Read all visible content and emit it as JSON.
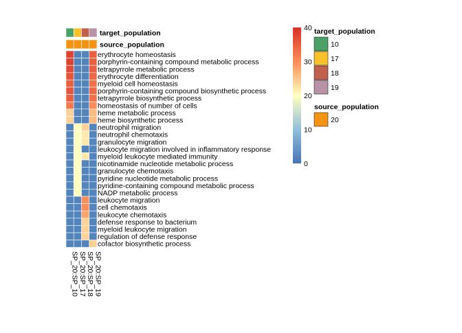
{
  "chart_data": {
    "type": "heatmap",
    "columns": [
      "SP_20:SP_10",
      "SP_20:SP_17",
      "SP_20:SP_18",
      "SP_20:SP_19"
    ],
    "rows": [
      "erythrocyte homeostasis",
      "porphyrin-containing compound metabolic process",
      "tetrapyrrole metabolic process",
      "erythrocyte differentiation",
      "myeloid cell homeostasis",
      "porphyrin-containing compound biosynthetic process",
      "tetrapyrrole biosynthetic process",
      "homeostasis of number of cells",
      "heme metabolic process",
      "heme biosynthetic process",
      "neutrophil migration",
      "neutrophil chemotaxis",
      "granulocyte migration",
      "leukocyte migration involved in inflammatory response",
      "myeloid leukocyte mediated immunity",
      "nicotinamide nucleotide metabolic process",
      "granulocyte chemotaxis",
      "pyridine nucleotide metabolic process",
      "pyridine-containing compound metabolic process",
      "NADP metabolic process",
      "leukocyte migration",
      "cell chemotaxis",
      "leukocyte chemotaxis",
      "defense response to bacterium",
      "myeloid leukocyte migration",
      "regulation of defense response",
      "cofactor biosynthetic process"
    ],
    "values": [
      [
        38,
        2,
        2,
        35
      ],
      [
        38,
        2,
        2,
        35
      ],
      [
        37,
        2,
        2,
        35
      ],
      [
        36,
        2,
        2,
        34
      ],
      [
        35,
        2,
        2,
        33
      ],
      [
        36,
        2,
        2,
        34
      ],
      [
        35,
        2,
        2,
        33
      ],
      [
        32,
        2,
        2,
        30
      ],
      [
        24,
        2,
        2,
        26
      ],
      [
        24,
        2,
        2,
        26
      ],
      [
        2,
        20,
        24,
        2
      ],
      [
        2,
        20,
        22,
        2
      ],
      [
        2,
        20,
        22,
        2
      ],
      [
        2,
        20,
        2,
        2
      ],
      [
        2,
        20,
        22,
        2
      ],
      [
        2,
        20,
        2,
        2
      ],
      [
        2,
        20,
        2,
        2
      ],
      [
        2,
        20,
        2,
        2
      ],
      [
        2,
        20,
        2,
        2
      ],
      [
        2,
        20,
        2,
        2
      ],
      [
        2,
        2,
        30,
        2
      ],
      [
        2,
        2,
        30,
        2
      ],
      [
        2,
        2,
        28,
        2
      ],
      [
        2,
        2,
        24,
        2
      ],
      [
        2,
        2,
        24,
        2
      ],
      [
        2,
        2,
        24,
        2
      ],
      [
        2,
        2,
        2,
        24
      ]
    ],
    "color_scale": {
      "min": 0,
      "max": 40,
      "ticks": [
        0,
        10,
        20,
        30,
        40
      ],
      "stops": [
        {
          "value": 0,
          "color": "#4575b4"
        },
        {
          "value": 10,
          "color": "#91bfdb"
        },
        {
          "value": 20,
          "color": "#ffffbf"
        },
        {
          "value": 30,
          "color": "#fc8d59"
        },
        {
          "value": 40,
          "color": "#d73027"
        }
      ]
    },
    "annotations": [
      {
        "name": "target_population",
        "values": [
          "10",
          "17",
          "18",
          "19"
        ],
        "colors": {
          "10": "#4aa268",
          "17": "#f6c12b",
          "18": "#c0614e",
          "19": "#b893a7"
        }
      },
      {
        "name": "source_population",
        "values": [
          "20",
          "20",
          "20",
          "20"
        ],
        "colors": {
          "20": "#f59413"
        }
      }
    ],
    "legends": [
      {
        "title": "target_population",
        "items": [
          "10",
          "17",
          "18",
          "19"
        ]
      },
      {
        "title": "source_population",
        "items": [
          "20"
        ]
      }
    ]
  }
}
